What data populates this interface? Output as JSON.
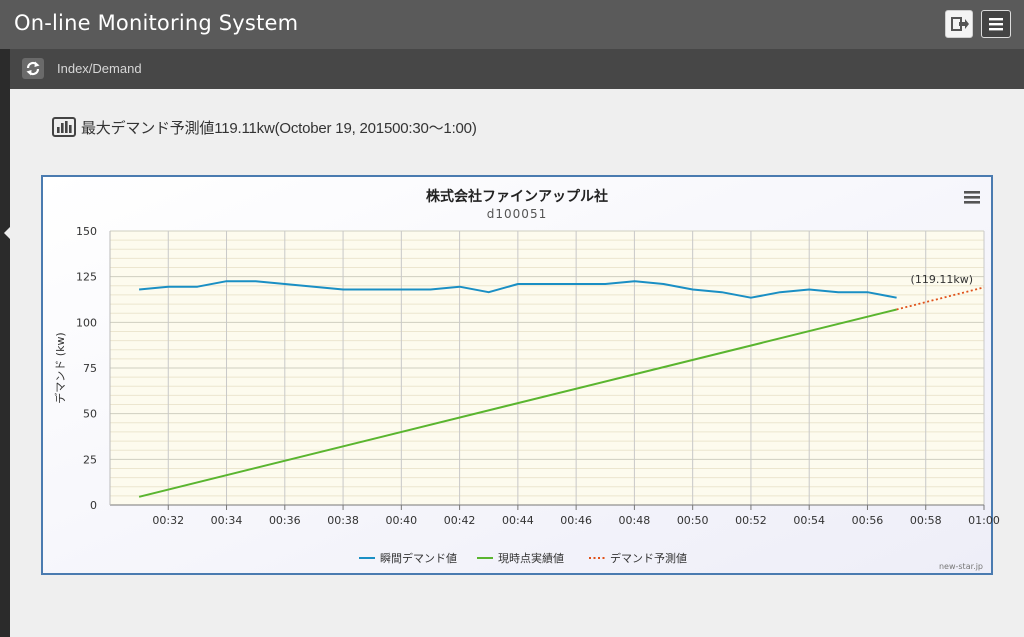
{
  "app": {
    "title": "On-line Monitoring System"
  },
  "toolbar": {
    "logout_icon": "logout-icon",
    "menu_icon": "hamburger-menu-icon"
  },
  "subbar": {
    "refresh_icon": "refresh-icon",
    "breadcrumb": "Index/Demand"
  },
  "headline": {
    "icon": "bar-chart-icon",
    "text": "最大デマンド予測値119.11kw(October 19, 201500:30〜1:00)"
  },
  "colors": {
    "actual": "#1a8fc4",
    "cumulative": "#5ab52f",
    "forecast": "#e0521a",
    "plot_bg": "#fdfbee",
    "frame": "#4a7bb0"
  },
  "chart_data": {
    "type": "line",
    "title": "株式会社ファインアップル社",
    "subtitle": "d100051",
    "ylabel": "デマンド (kw)",
    "xlabel": "",
    "ylim": [
      0,
      150
    ],
    "yticks": [
      "0",
      "25",
      "50",
      "75",
      "100",
      "125",
      "150"
    ],
    "xlim": [
      "00:30",
      "01:00"
    ],
    "xticks": [
      "00:32",
      "00:34",
      "00:36",
      "00:38",
      "00:40",
      "00:42",
      "00:44",
      "00:46",
      "00:48",
      "00:50",
      "00:52",
      "00:54",
      "00:56",
      "00:58",
      "01:00"
    ],
    "grid": true,
    "legend_position": "bottom",
    "forecast_label": "(119.11kw)",
    "credit": "new-star.jp",
    "menu_icon": "chart-menu-icon",
    "series": [
      {
        "name": "瞬間デマンド値",
        "style": "solid",
        "x": [
          "00:31",
          "00:32",
          "00:33",
          "00:34",
          "00:35",
          "00:36",
          "00:37",
          "00:38",
          "00:39",
          "00:40",
          "00:41",
          "00:42",
          "00:43",
          "00:44",
          "00:45",
          "00:46",
          "00:47",
          "00:48",
          "00:49",
          "00:50",
          "00:51",
          "00:52",
          "00:53",
          "00:54",
          "00:55",
          "00:56",
          "00:57"
        ],
        "values": [
          118,
          119.5,
          119.5,
          122.5,
          122.5,
          121,
          119.5,
          118,
          118,
          118,
          118,
          119.5,
          116.5,
          121,
          121,
          121,
          121,
          122.5,
          121,
          118,
          116.5,
          113.5,
          116.5,
          118,
          116.5,
          116.5,
          113.5
        ]
      },
      {
        "name": "現時点実績値",
        "style": "solid",
        "x": [
          "00:31",
          "00:57"
        ],
        "values": [
          4.5,
          107
        ]
      },
      {
        "name": "デマンド予測値",
        "style": "dotted",
        "x": [
          "00:57",
          "01:00"
        ],
        "values": [
          107,
          119.11
        ]
      }
    ]
  }
}
